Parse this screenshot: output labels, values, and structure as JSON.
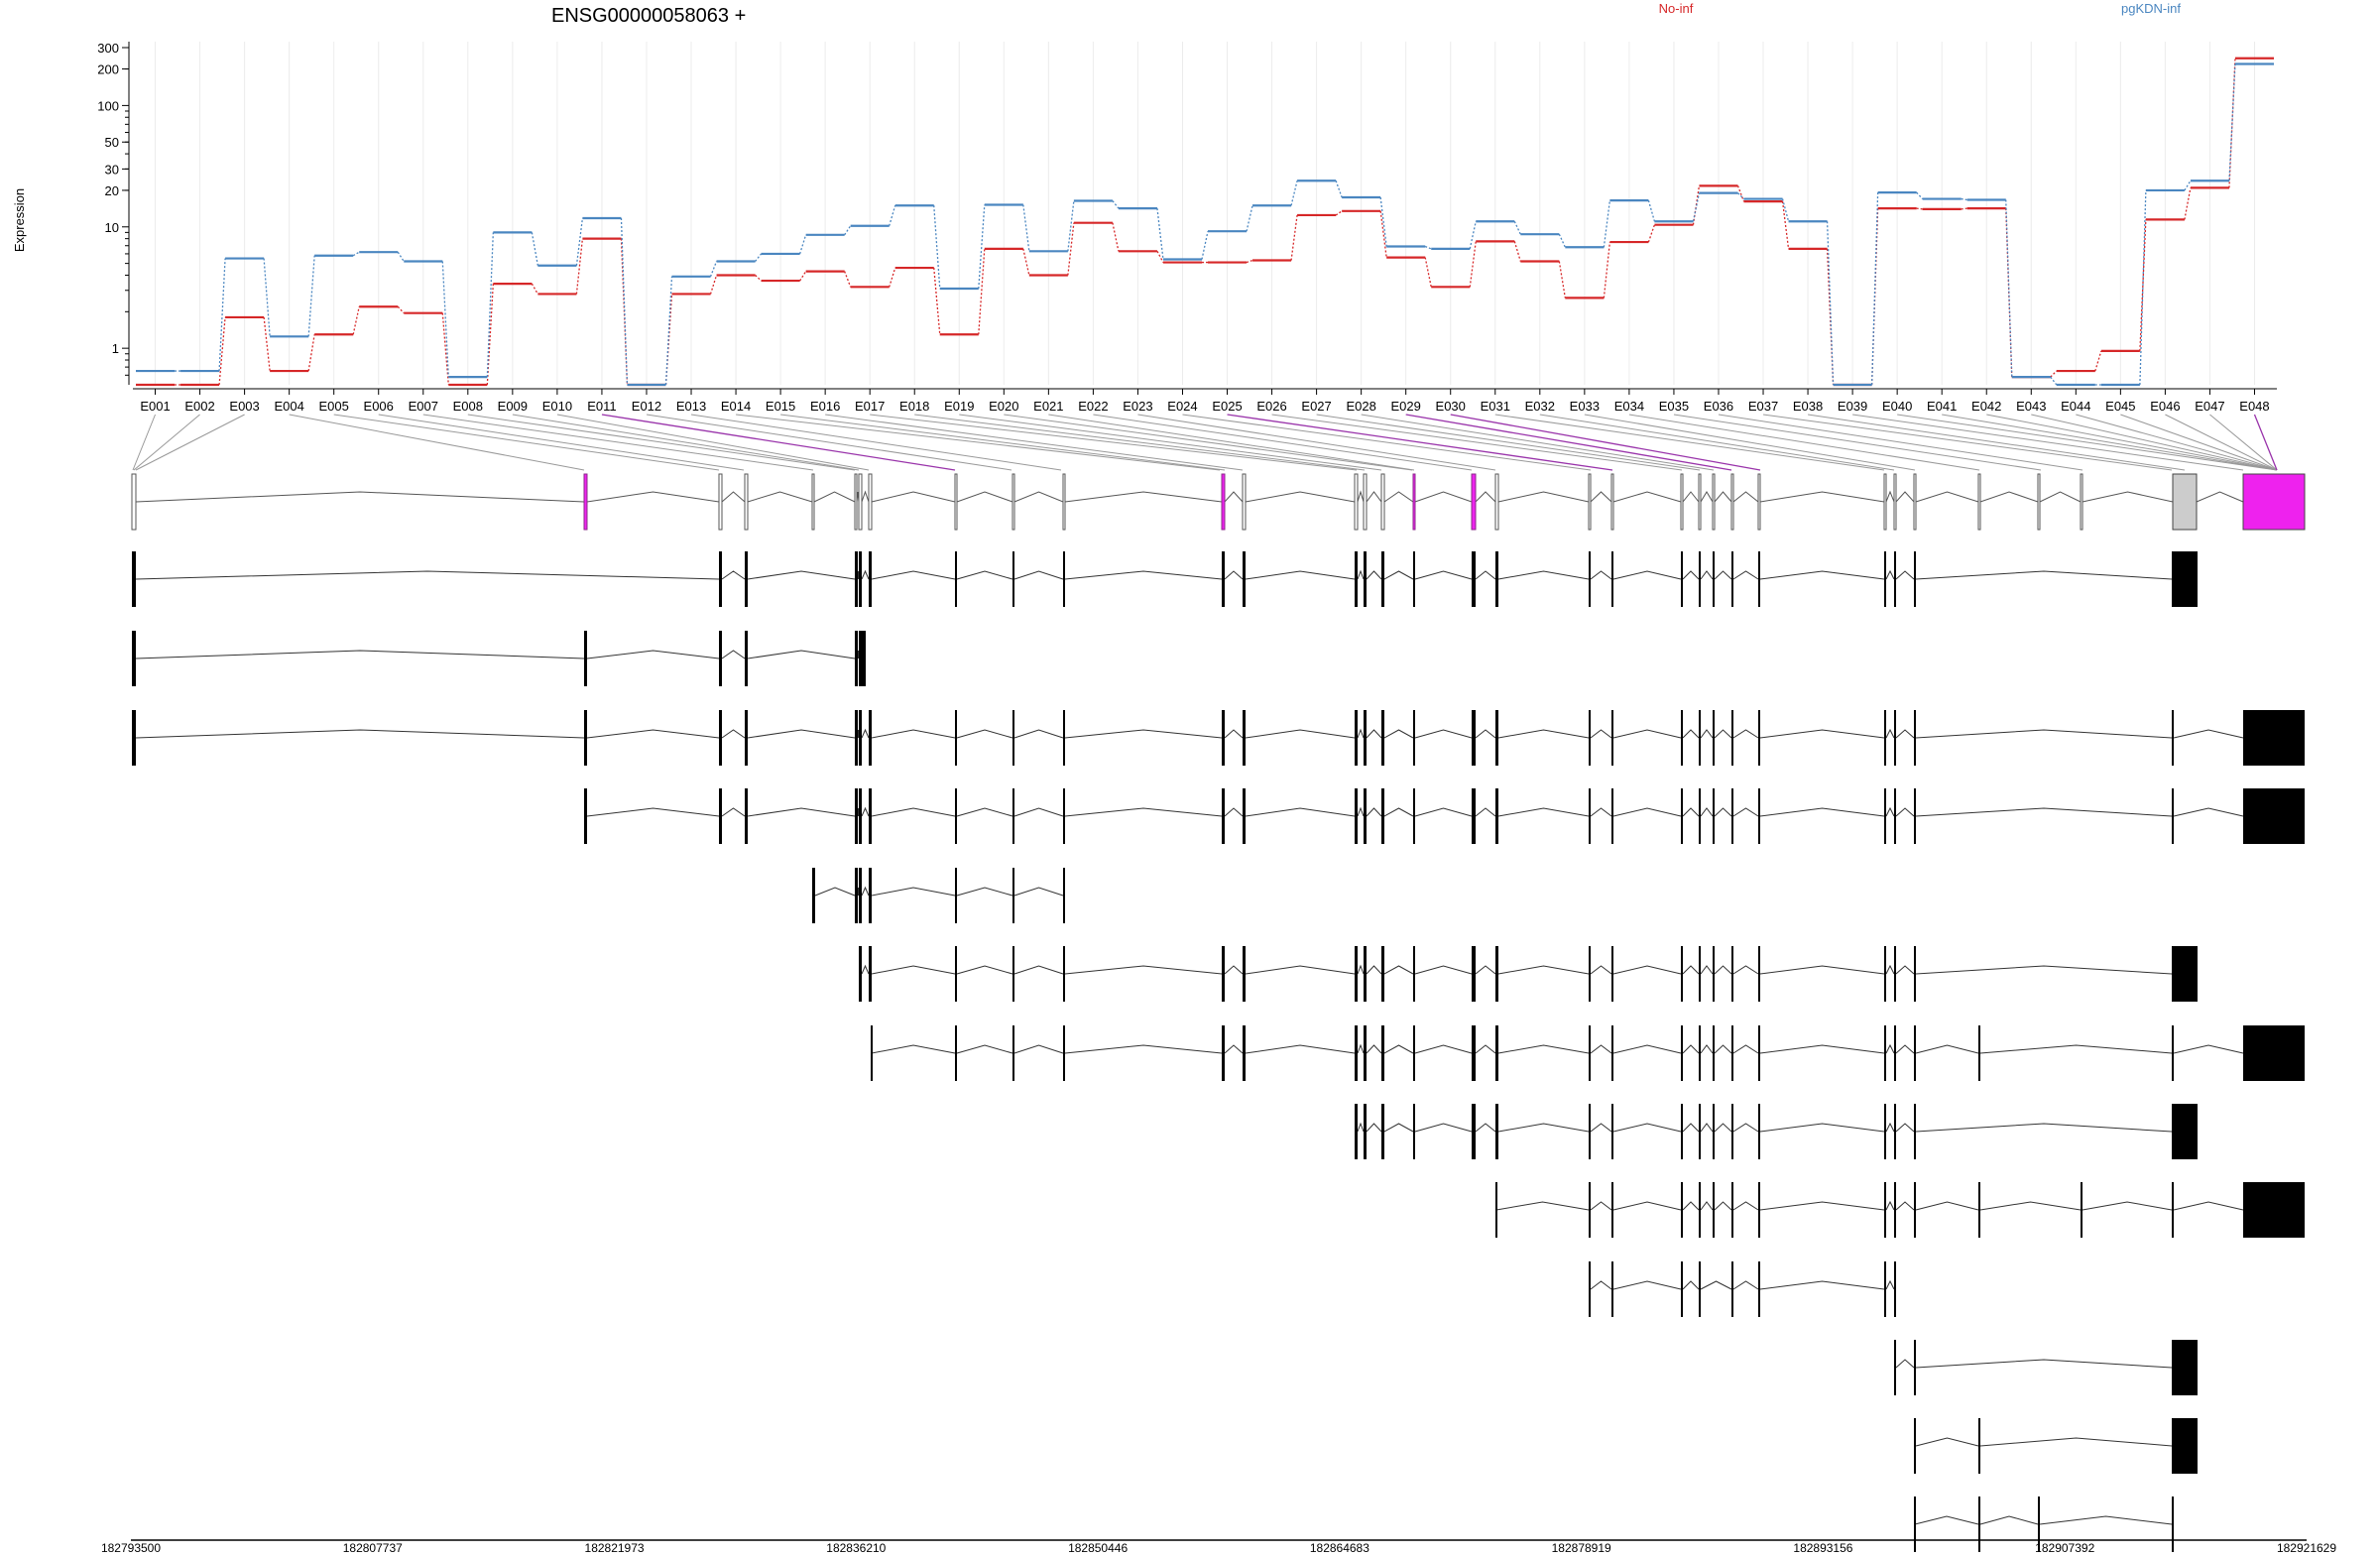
{
  "chart_data": {
    "type": "line",
    "title": "ENSG00000058063 +",
    "ylabel": "Expression",
    "xlabel": "",
    "yscale": "log",
    "ylim": [
      0.5,
      300
    ],
    "yticks": [
      "1",
      "10",
      "20",
      "30",
      "50",
      "100",
      "200",
      "300"
    ],
    "grid": "vertical",
    "legend_placement": "top",
    "exon_ids": [
      "E001",
      "E002",
      "E003",
      "E004",
      "E005",
      "E006",
      "E007",
      "E008",
      "E009",
      "E010",
      "E011",
      "E012",
      "E013",
      "E014",
      "E015",
      "E016",
      "E017",
      "E018",
      "E019",
      "E020",
      "E021",
      "E022",
      "E023",
      "E024",
      "E025",
      "E026",
      "E027",
      "E028",
      "E029",
      "E030",
      "E031",
      "E032",
      "E033",
      "E034",
      "E035",
      "E036",
      "E037",
      "E038",
      "E039",
      "E040",
      "E041",
      "E042",
      "E043",
      "E044",
      "E045",
      "E046",
      "E047",
      "E048"
    ],
    "series": [
      {
        "name": "No-inf",
        "color": "#d62728",
        "values": [
          0.5,
          0.5,
          1.8,
          0.65,
          1.3,
          2.2,
          1.95,
          0.5,
          3.4,
          2.8,
          8.0,
          0.5,
          2.8,
          4.0,
          3.6,
          4.3,
          3.2,
          4.6,
          1.3,
          6.6,
          4.0,
          10.8,
          6.3,
          5.1,
          5.1,
          5.3,
          12.5,
          13.5,
          5.6,
          3.2,
          7.6,
          5.2,
          2.6,
          7.5,
          10.4,
          21.8,
          16.2,
          6.6,
          0.5,
          14.2,
          14.0,
          14.2,
          0.58,
          0.65,
          0.95,
          11.5,
          21.0,
          245
        ]
      },
      {
        "name": "pgKDN-inf",
        "color": "#4a86c0",
        "values": [
          0.65,
          0.65,
          5.5,
          1.25,
          5.8,
          6.2,
          5.2,
          0.58,
          9.0,
          4.8,
          11.8,
          0.5,
          3.9,
          5.2,
          6.0,
          8.6,
          10.2,
          15.0,
          3.1,
          15.2,
          6.3,
          16.4,
          14.2,
          5.4,
          9.2,
          15.0,
          24.0,
          17.5,
          6.9,
          6.6,
          11.1,
          8.7,
          6.8,
          16.5,
          11.1,
          19.0,
          17.0,
          11.1,
          0.5,
          19.2,
          17.0,
          16.7,
          0.58,
          0.5,
          0.5,
          20.0,
          24.0,
          220
        ]
      }
    ],
    "exon_labels_highlighted": [
      "E011",
      "E025",
      "E029",
      "E030",
      "E048"
    ],
    "genomic_axis_ticks": [
      "182793500",
      "182807737",
      "182821973",
      "182836210",
      "182850446",
      "182864683",
      "182878919",
      "182893156",
      "182907392",
      "182921629"
    ],
    "transcript_count": 14
  },
  "colors": {
    "highlight": "#ee22ee",
    "highlight_line": "#9933aa",
    "gray_exon": "#cccccc"
  }
}
